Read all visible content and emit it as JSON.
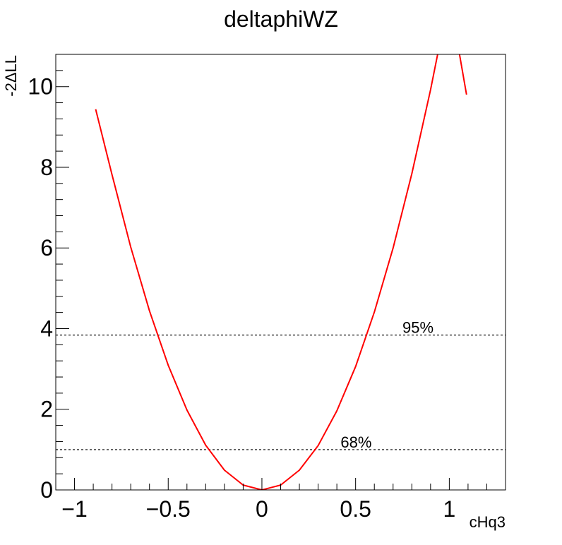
{
  "chart_data": {
    "type": "line",
    "title": "deltaphiWZ",
    "xlabel": "cHq3",
    "ylabel": "-2ΔLL",
    "xlim": [
      -1.1,
      1.3
    ],
    "ylim": [
      0,
      10.8
    ],
    "x_ticks": [
      -1,
      -0.5,
      0,
      0.5,
      1
    ],
    "x_tick_labels": [
      "−1",
      "−0.5",
      "0",
      "0.5",
      "1"
    ],
    "y_ticks": [
      0,
      2,
      4,
      6,
      8,
      10
    ],
    "y_tick_labels": [
      "0",
      "2",
      "4",
      "6",
      "8",
      "10"
    ],
    "grid": false,
    "series": [
      {
        "color": "#ff0000",
        "x": [
          -0.887,
          -0.8,
          -0.7,
          -0.6,
          -0.5,
          -0.4,
          -0.3,
          -0.2,
          -0.1,
          0.0,
          0.1,
          0.2,
          0.3,
          0.4,
          0.5,
          0.6,
          0.7,
          0.8,
          0.9,
          1.0,
          1.092
        ],
        "y": [
          9.44,
          7.82,
          6.02,
          4.44,
          3.09,
          1.98,
          1.11,
          0.49,
          0.12,
          0.0,
          0.12,
          0.49,
          1.1,
          1.96,
          3.06,
          4.41,
          6.0,
          7.84,
          9.92,
          12.25,
          9.8
        ]
      }
    ],
    "reference_lines": [
      {
        "y": 3.84,
        "label": "95%",
        "label_x": 0.75,
        "style": "dotted",
        "color": "#444444"
      },
      {
        "y": 1.0,
        "label": "68%",
        "label_x": 0.42,
        "style": "dotted",
        "color": "#444444"
      }
    ]
  }
}
